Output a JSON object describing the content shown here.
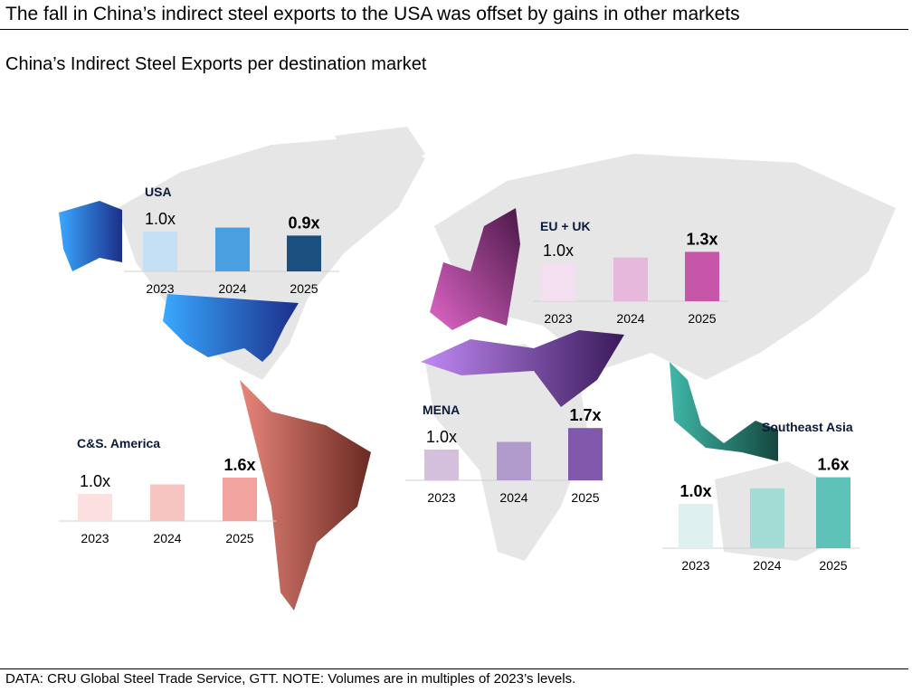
{
  "title": "The fall in China’s indirect steel exports to the USA was offset by gains in other markets",
  "subtitle": "China’s Indirect Steel Exports per destination market",
  "source": "DATA: CRU Global Steel Trade Service, GTT. NOTE: Volumes are in multiples of 2023’s levels.",
  "chart_data": [
    {
      "type": "bar",
      "region": "USA",
      "categories": [
        "2023",
        "2024",
        "2025"
      ],
      "values": [
        1.0,
        1.1,
        0.9
      ],
      "labels": [
        "1.0x",
        "",
        "0.9x"
      ],
      "colors": [
        "#c5dff5",
        "#4a9fe0",
        "#1b4f7f"
      ]
    },
    {
      "type": "bar",
      "region": "EU + UK",
      "categories": [
        "2023",
        "2024",
        "2025"
      ],
      "values": [
        1.0,
        1.15,
        1.3
      ],
      "labels": [
        "1.0x",
        "",
        "1.3x"
      ],
      "colors": [
        "#f3dff0",
        "#e6b8dc",
        "#c556a8"
      ]
    },
    {
      "type": "bar",
      "region": "MENA",
      "categories": [
        "2023",
        "2024",
        "2025"
      ],
      "values": [
        1.0,
        1.25,
        1.7
      ],
      "labels": [
        "1.0x",
        "",
        "1.7x"
      ],
      "colors": [
        "#d4c0dd",
        "#b19bcc",
        "#8159ac"
      ]
    },
    {
      "type": "bar",
      "region": "C&S. America",
      "categories": [
        "2023",
        "2024",
        "2025"
      ],
      "values": [
        1.0,
        1.35,
        1.6
      ],
      "labels": [
        "1.0x",
        "",
        "1.6x"
      ],
      "colors": [
        "#fbe0df",
        "#f6c5c2",
        "#f0a39f"
      ]
    },
    {
      "type": "bar",
      "region": "Southeast Asia",
      "categories": [
        "2023",
        "2024",
        "2025"
      ],
      "values": [
        1.0,
        1.35,
        1.6
      ],
      "labels": [
        "1.0x",
        "",
        "1.6x"
      ],
      "colors": [
        "#dff0f0",
        "#a3dbd5",
        "#5fc2b8"
      ]
    }
  ]
}
